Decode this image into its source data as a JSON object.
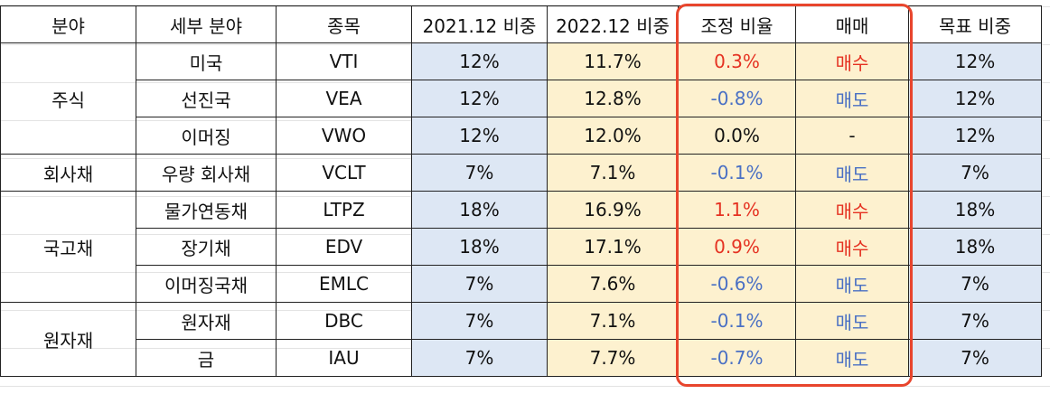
{
  "table": {
    "header": [
      "분야",
      "세부 분야",
      "종목",
      "2021.12 비중",
      "2022.12 비중",
      "조정 비율",
      "매매",
      "목표 비중"
    ],
    "groups": [
      {
        "label": "주식",
        "rows": [
          [
            "미국",
            "VTI",
            "12%",
            "11.7%",
            "0.3%",
            "매수",
            "12%"
          ],
          [
            "선진국",
            "VEA",
            "12%",
            "12.8%",
            "-0.8%",
            "매도",
            "12%"
          ],
          [
            "이머징",
            "VWO",
            "12%",
            "12.0%",
            "0.0%",
            "-",
            "12%"
          ]
        ]
      },
      {
        "label": "회사채",
        "rows": [
          [
            "우량 회사채",
            "VCLT",
            "7%",
            "7.1%",
            "-0.1%",
            "매도",
            "7%"
          ]
        ]
      },
      {
        "label": "국고채",
        "rows": [
          [
            "물가연동채",
            "LTPZ",
            "18%",
            "16.9%",
            "1.1%",
            "매수",
            "18%"
          ],
          [
            "장기채",
            "EDV",
            "18%",
            "17.1%",
            "0.9%",
            "매수",
            "18%"
          ],
          [
            "이머징국채",
            "EMLC",
            "7%",
            "7.6%",
            "-0.6%",
            "매도",
            "7%"
          ]
        ]
      },
      {
        "label": "원자재",
        "rows": [
          [
            "원자재",
            "DBC",
            "7%",
            "7.1%",
            "-0.1%",
            "매도",
            "7%"
          ],
          [
            "금",
            "IAU",
            "7%",
            "7.7%",
            "-0.7%",
            "매도",
            "7%"
          ]
        ]
      }
    ]
  }
}
